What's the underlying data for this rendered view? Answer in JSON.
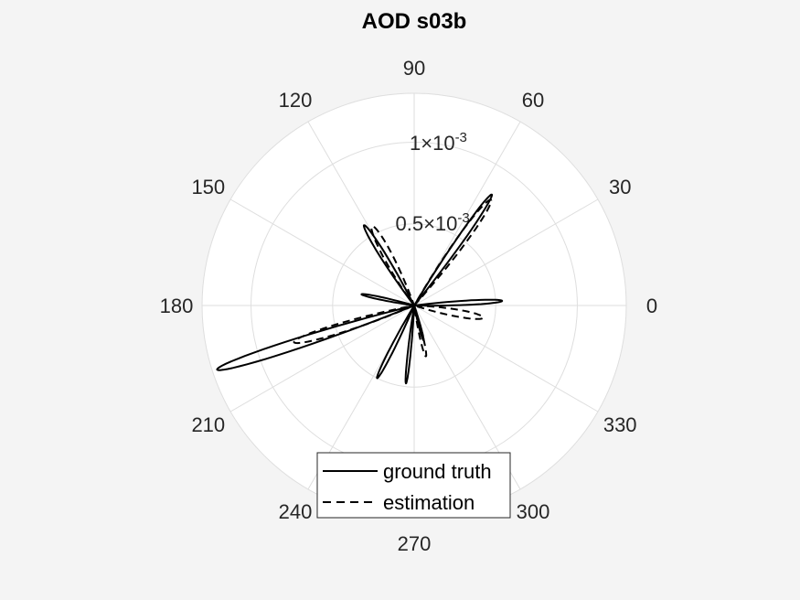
{
  "chart_data": {
    "type": "polar-line",
    "title": "AOD s03b",
    "theta_unit": "degrees",
    "theta_ticks": [
      "0",
      "30",
      "60",
      "90",
      "120",
      "150",
      "180",
      "210",
      "240",
      "270",
      "300",
      "330"
    ],
    "r_max": 0.0013,
    "r_ticks": [
      {
        "value": 0.0005,
        "mantissa": "0.5×10",
        "exponent": "-3"
      },
      {
        "value": 0.001,
        "mantissa": "1×10",
        "exponent": "-3"
      }
    ],
    "rtick_angle_deg": 80,
    "grid": true,
    "legend_position": "bottom",
    "legend": {
      "ground_truth": "ground truth",
      "estimation": "estimation"
    },
    "series": [
      {
        "name": "ground truth",
        "style": "solid",
        "color": "#000000",
        "lobes": [
          {
            "angle": 3,
            "peak": 0.00054,
            "width": 4
          },
          {
            "angle": 55,
            "peak": 0.00083,
            "width": 4
          },
          {
            "angle": 122,
            "peak": 0.00058,
            "width": 5
          },
          {
            "angle": 168,
            "peak": 0.00033,
            "width": 4
          },
          {
            "angle": 198,
            "peak": 0.00127,
            "width": 4
          },
          {
            "angle": 243,
            "peak": 0.0005,
            "width": 4
          },
          {
            "angle": 264,
            "peak": 0.00048,
            "width": 3
          },
          {
            "angle": 285,
            "peak": 0.00022,
            "width": 4
          }
        ]
      },
      {
        "name": "estimation",
        "style": "dashed",
        "color": "#000000",
        "lobes": [
          {
            "angle": 54,
            "peak": 0.0008,
            "width": 6
          },
          {
            "angle": 118,
            "peak": 0.00055,
            "width": 8
          },
          {
            "angle": 197,
            "peak": 0.00077,
            "width": 6
          },
          {
            "angle": 350,
            "peak": 0.00043,
            "width": 8
          },
          {
            "angle": 283,
            "peak": 0.00032,
            "width": 5
          }
        ]
      }
    ]
  }
}
